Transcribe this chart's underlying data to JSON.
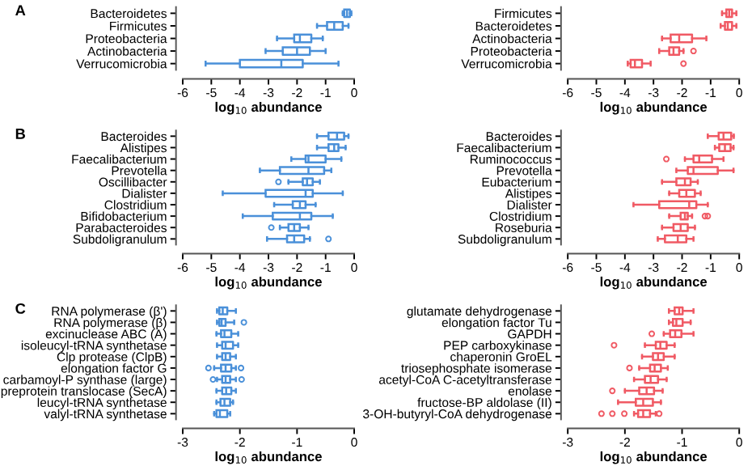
{
  "chart_data": [
    {
      "type": "box",
      "orientation": "horizontal",
      "annotations": [
        "A"
      ],
      "xlabel": "log$_{10}$ abundance",
      "xlim": [
        -6,
        0
      ],
      "xticks": [
        -6,
        -5,
        -4,
        -3,
        -2,
        -1,
        0
      ],
      "grid": false,
      "legend": false,
      "categories": [
        "Bacteroidetes",
        "Firmicutes",
        "Proteobacteria",
        "Actinobacteria",
        "Verrucomicrobia"
      ],
      "series": [
        {
          "color": "#4a90d9",
          "boxes": [
            {
              "low": -0.4,
              "q1": -0.35,
              "median": -0.25,
              "q3": -0.15,
              "high": -0.1
            },
            {
              "low": -1.3,
              "q1": -0.95,
              "median": -0.7,
              "q3": -0.4,
              "high": -0.2
            },
            {
              "low": -2.7,
              "q1": -2.1,
              "median": -1.9,
              "q3": -1.5,
              "high": -1.1
            },
            {
              "low": -3.1,
              "q1": -2.5,
              "median": -2.0,
              "q3": -1.55,
              "high": -1.0
            },
            {
              "low": -5.2,
              "q1": -4.0,
              "median": -2.55,
              "q3": -1.8,
              "high": -0.55
            }
          ]
        }
      ]
    },
    {
      "type": "box",
      "orientation": "horizontal",
      "xlabel": "log$_{10}$ abundance",
      "xlim": [
        -6,
        0
      ],
      "xticks": [
        -6,
        -5,
        -4,
        -3,
        -2,
        -1,
        0
      ],
      "grid": false,
      "legend": false,
      "categories": [
        "Firmicutes",
        "Bacteroidetes",
        "Actinobacteria",
        "Proteobacteria",
        "Verrucomicrobia"
      ],
      "series": [
        {
          "color": "#f05a64",
          "boxes": [
            {
              "low": -0.6,
              "q1": -0.45,
              "median": -0.35,
              "q3": -0.25,
              "high": -0.1
            },
            {
              "low": -0.65,
              "q1": -0.5,
              "median": -0.4,
              "q3": -0.25,
              "high": -0.1
            },
            {
              "low": -2.7,
              "q1": -2.4,
              "median": -2.1,
              "q3": -1.65,
              "high": -1.15
            },
            {
              "low": -2.8,
              "q1": -2.45,
              "median": -2.3,
              "q3": -2.1,
              "high": -1.95,
              "outliers": [
                -1.6
              ]
            },
            {
              "low": -3.9,
              "q1": -3.8,
              "median": -3.65,
              "q3": -3.4,
              "high": -3.1,
              "outliers": [
                -1.95
              ]
            }
          ]
        }
      ]
    },
    {
      "type": "box",
      "orientation": "horizontal",
      "annotations": [
        "B"
      ],
      "xlabel": "log$_{10}$ abundance",
      "xlim": [
        -6,
        0
      ],
      "xticks": [
        -6,
        -5,
        -4,
        -3,
        -2,
        -1,
        0
      ],
      "grid": false,
      "legend": false,
      "categories": [
        "Bacteroides",
        "Alistipes",
        "Faecalibacterium",
        "Prevotella",
        "Oscillibacter",
        "Dialister",
        "Clostridium",
        "Bifidobacterium",
        "Parabacteroides",
        "Subdoligranulum"
      ],
      "series": [
        {
          "color": "#4a90d9",
          "boxes": [
            {
              "low": -1.3,
              "q1": -0.9,
              "median": -0.6,
              "q3": -0.35,
              "high": -0.2
            },
            {
              "low": -1.3,
              "q1": -0.9,
              "median": -0.7,
              "q3": -0.55,
              "high": -0.3
            },
            {
              "low": -2.2,
              "q1": -1.7,
              "median": -1.6,
              "q3": -1.0,
              "high": -0.45
            },
            {
              "low": -3.3,
              "q1": -2.6,
              "median": -1.6,
              "q3": -1.05,
              "high": -0.8
            },
            {
              "low": -2.3,
              "q1": -1.8,
              "median": -1.65,
              "q3": -1.45,
              "high": -1.2,
              "outliers": [
                -2.65
              ]
            },
            {
              "low": -4.6,
              "q1": -3.1,
              "median": -1.7,
              "q3": -1.45,
              "high": -0.4
            },
            {
              "low": -2.8,
              "q1": -2.15,
              "median": -1.9,
              "q3": -1.7,
              "high": -1.35
            },
            {
              "low": -3.9,
              "q1": -2.85,
              "median": -1.9,
              "q3": -1.5,
              "high": -0.75
            },
            {
              "low": -2.6,
              "q1": -2.3,
              "median": -2.1,
              "q3": -1.9,
              "high": -1.6,
              "outliers": [
                -2.9
              ]
            },
            {
              "low": -3.05,
              "q1": -2.35,
              "median": -2.1,
              "q3": -1.75,
              "high": -1.55,
              "outliers": [
                -0.9
              ]
            }
          ]
        }
      ]
    },
    {
      "type": "box",
      "orientation": "horizontal",
      "xlabel": "log$_{10}$ abundance",
      "xlim": [
        -6,
        0
      ],
      "xticks": [
        -6,
        -5,
        -4,
        -3,
        -2,
        -1,
        0
      ],
      "grid": false,
      "legend": false,
      "categories": [
        "Bacteroides",
        "Faecalibacterium",
        "Ruminococcus",
        "Prevotella",
        "Eubacterium",
        "Alistipes",
        "Dialister",
        "Clostridium",
        "Roseburia",
        "Subdoligranulum"
      ],
      "series": [
        {
          "color": "#f05a64",
          "boxes": [
            {
              "low": -1.1,
              "q1": -0.72,
              "median": -0.55,
              "q3": -0.28,
              "high": -0.19
            },
            {
              "low": -0.85,
              "q1": -0.7,
              "median": -0.5,
              "q3": -0.3,
              "high": -0.2
            },
            {
              "low": -1.9,
              "q1": -1.6,
              "median": -1.4,
              "q3": -0.95,
              "high": -0.55,
              "outliers": [
                -2.55
              ]
            },
            {
              "low": -2.2,
              "q1": -1.8,
              "median": -1.6,
              "q3": -0.75,
              "high": -0.2
            },
            {
              "low": -2.7,
              "q1": -2.2,
              "median": -1.9,
              "q3": -1.7,
              "high": -1.45
            },
            {
              "low": -2.45,
              "q1": -2.1,
              "median": -1.85,
              "q3": -1.55,
              "high": -1.35
            },
            {
              "low": -3.7,
              "q1": -2.8,
              "median": -1.75,
              "q3": -1.5,
              "high": -1.1
            },
            {
              "low": -2.45,
              "q1": -2.05,
              "median": -1.9,
              "q3": -1.8,
              "high": -1.65,
              "outliers": [
                -1.2,
                -1.1
              ]
            },
            {
              "low": -2.7,
              "q1": -2.3,
              "median": -2.05,
              "q3": -1.8,
              "high": -1.55
            },
            {
              "low": -2.85,
              "q1": -2.6,
              "median": -2.15,
              "q3": -1.85,
              "high": -1.6
            }
          ]
        }
      ]
    },
    {
      "type": "box",
      "orientation": "horizontal",
      "annotations": [
        "C"
      ],
      "xlabel": "log$_{10}$ abundance",
      "xlim": [
        -3,
        0
      ],
      "xticks": [
        -3,
        -2,
        -1,
        0
      ],
      "grid": false,
      "legend": false,
      "categories": [
        "RNA polymerase (β')",
        "RNA polymerase (β)",
        "excinuclease ABC (A)",
        "isoleucyl-tRNA synthetase",
        "Clp protease (ClpB)",
        "elongation factor G",
        "carbamoyl-P synthase (large)",
        "preprotein translocase (SecA)",
        "leucyl-tRNA synthetase",
        "valyl-tRNA synthetase"
      ],
      "series": [
        {
          "color": "#4a90d9",
          "boxes": [
            {
              "low": -2.4,
              "q1": -2.36,
              "median": -2.3,
              "q3": -2.22,
              "high": -2.07
            },
            {
              "low": -2.4,
              "q1": -2.36,
              "median": -2.32,
              "q3": -2.25,
              "high": -2.1,
              "outliers": [
                -1.93
              ]
            },
            {
              "low": -2.41,
              "q1": -2.33,
              "median": -2.27,
              "q3": -2.15,
              "high": -2.03
            },
            {
              "low": -2.4,
              "q1": -2.31,
              "median": -2.25,
              "q3": -2.12,
              "high": -2.03
            },
            {
              "low": -2.4,
              "q1": -2.31,
              "median": -2.25,
              "q3": -2.17,
              "high": -2.07
            },
            {
              "low": -2.45,
              "q1": -2.33,
              "median": -2.25,
              "q3": -2.15,
              "high": -2.07,
              "outliers": [
                -2.55,
                -1.98
              ]
            },
            {
              "low": -2.4,
              "q1": -2.31,
              "median": -2.25,
              "q3": -2.17,
              "high": -2.07,
              "outliers": [
                -2.47,
                -1.97
              ]
            },
            {
              "low": -2.41,
              "q1": -2.31,
              "median": -2.24,
              "q3": -2.15,
              "high": -2.07
            },
            {
              "low": -2.41,
              "q1": -2.34,
              "median": -2.27,
              "q3": -2.17,
              "high": -2.12
            },
            {
              "low": -2.45,
              "q1": -2.41,
              "median": -2.35,
              "q3": -2.22,
              "high": -2.17
            }
          ]
        }
      ]
    },
    {
      "type": "box",
      "orientation": "horizontal",
      "xlabel": "log$_{10}$ abundance",
      "xlim": [
        -3,
        0
      ],
      "xticks": [
        -3,
        -2,
        -1,
        0
      ],
      "grid": false,
      "legend": false,
      "categories": [
        "glutamate dehydrogenase",
        "elongation factor Tu",
        "GAPDH",
        "PEP carboxykinase",
        "chaperonin GroEL",
        "triosephosphate isomerase",
        "acetyl-CoA C-acetyltransferase",
        "enolase",
        "fructose-BP aldolase (II)",
        "3-OH-butyryl-CoA dehydrogenase"
      ],
      "series": [
        {
          "color": "#f05a64",
          "boxes": [
            {
              "low": -1.23,
              "q1": -1.13,
              "median": -1.05,
              "q3": -0.99,
              "high": -0.8
            },
            {
              "low": -1.23,
              "q1": -1.16,
              "median": -1.1,
              "q3": -0.99,
              "high": -0.85
            },
            {
              "low": -1.32,
              "q1": -1.21,
              "median": -1.12,
              "q3": -1.01,
              "high": -0.8,
              "outliers": [
                -1.53
              ]
            },
            {
              "low": -1.65,
              "q1": -1.46,
              "median": -1.38,
              "q3": -1.27,
              "high": -1.13,
              "outliers": [
                -2.19
              ]
            },
            {
              "low": -1.7,
              "q1": -1.51,
              "median": -1.42,
              "q3": -1.32,
              "high": -1.13
            },
            {
              "low": -1.75,
              "q1": -1.56,
              "median": -1.48,
              "q3": -1.37,
              "high": -1.25,
              "outliers": [
                -1.92
              ]
            },
            {
              "low": -1.84,
              "q1": -1.65,
              "median": -1.55,
              "q3": -1.42,
              "high": -1.27
            },
            {
              "low": -2.0,
              "q1": -1.75,
              "median": -1.62,
              "q3": -1.49,
              "high": -1.34,
              "outliers": [
                -2.22
              ]
            },
            {
              "low": -2.12,
              "q1": -1.81,
              "median": -1.68,
              "q3": -1.51,
              "high": -1.37
            },
            {
              "low": -1.84,
              "q1": -1.77,
              "median": -1.68,
              "q3": -1.56,
              "high": -1.46,
              "outliers": [
                -2.41,
                -2.22,
                -2.01,
                -1.4
              ]
            }
          ]
        }
      ]
    }
  ]
}
